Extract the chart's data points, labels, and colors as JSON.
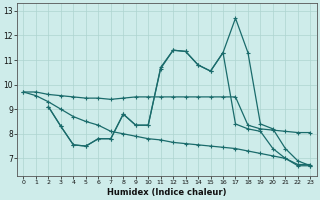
{
  "xlabel": "Humidex (Indice chaleur)",
  "bg_color": "#ceecea",
  "grid_color": "#aed4d0",
  "line_color": "#1a6b6b",
  "xlim": [
    -0.5,
    23.5
  ],
  "ylim": [
    6.3,
    13.3
  ],
  "yticks": [
    7,
    8,
    9,
    10,
    11,
    12,
    13
  ],
  "xticks": [
    0,
    1,
    2,
    3,
    4,
    5,
    6,
    7,
    8,
    9,
    10,
    11,
    12,
    13,
    14,
    15,
    16,
    17,
    18,
    19,
    20,
    21,
    22,
    23
  ],
  "line1_x": [
    0,
    1,
    2,
    3,
    4,
    5,
    6,
    7,
    8,
    9,
    10,
    11,
    12,
    13,
    14,
    15,
    16,
    17,
    18,
    19,
    20,
    21,
    22,
    23
  ],
  "line1_y": [
    9.7,
    9.7,
    9.6,
    9.55,
    9.5,
    9.45,
    9.45,
    9.4,
    9.45,
    9.5,
    9.5,
    9.5,
    9.5,
    9.5,
    9.5,
    9.5,
    9.5,
    9.5,
    8.35,
    8.2,
    8.15,
    8.1,
    8.05,
    8.05
  ],
  "line2_x": [
    2,
    3,
    4,
    5,
    6,
    7,
    8,
    9,
    10,
    11,
    12,
    13,
    14,
    15,
    16,
    17,
    18,
    19,
    20,
    21,
    22,
    23
  ],
  "line2_y": [
    9.1,
    8.3,
    7.55,
    7.5,
    7.8,
    7.8,
    8.8,
    8.35,
    8.35,
    10.65,
    11.4,
    11.35,
    10.8,
    10.55,
    11.3,
    8.4,
    8.2,
    8.1,
    7.4,
    7.0,
    6.7,
    6.7
  ],
  "line3_x": [
    0,
    1,
    2,
    3,
    4,
    5,
    6,
    7,
    8,
    9,
    10,
    11,
    12,
    13,
    14,
    15,
    16,
    17,
    18,
    19,
    20,
    21,
    22,
    23
  ],
  "line3_y": [
    9.7,
    9.55,
    9.3,
    9.0,
    8.7,
    8.5,
    8.35,
    8.1,
    8.0,
    7.9,
    7.8,
    7.75,
    7.65,
    7.6,
    7.55,
    7.5,
    7.45,
    7.4,
    7.3,
    7.2,
    7.1,
    7.0,
    6.75,
    6.75
  ],
  "line4_x": [
    2,
    3,
    4,
    5,
    6,
    7,
    8,
    9,
    10,
    11,
    12,
    13,
    14,
    15,
    16,
    17,
    18,
    19,
    20,
    21,
    22,
    23
  ],
  "line4_y": [
    9.1,
    8.3,
    7.55,
    7.5,
    7.8,
    7.8,
    8.8,
    8.35,
    8.35,
    10.7,
    11.4,
    11.35,
    10.8,
    10.55,
    11.3,
    12.7,
    11.3,
    8.4,
    8.2,
    7.4,
    6.9,
    6.7
  ]
}
